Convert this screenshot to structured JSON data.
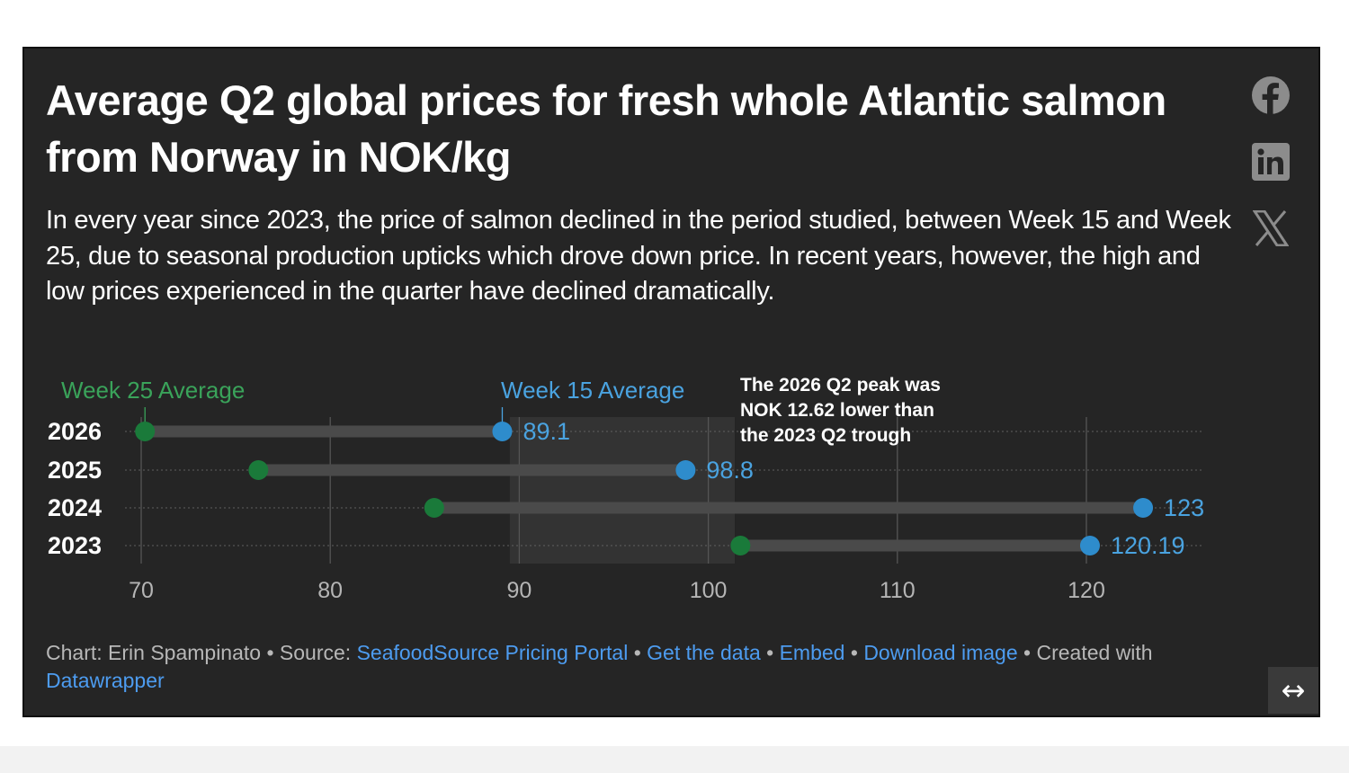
{
  "title": "Average Q2 global prices for fresh whole Atlantic salmon from Norway in NOK/kg",
  "subtitle": "In every year since 2023, the price of salmon declined in the period studied, between Week 15 and Week 25, due to seasonal production upticks which drove down price. In recent years, however, the high and low prices experienced in the quarter have declined dramatically.",
  "social": {
    "facebook": "facebook-icon",
    "linkedin": "linkedin-icon",
    "x": "x-icon"
  },
  "chart_data": {
    "type": "dot-range",
    "categories": [
      "2026",
      "2025",
      "2024",
      "2023"
    ],
    "series": [
      {
        "name": "Week 25 Average",
        "color": "#1a7a3a",
        "values": [
          70.2,
          76.2,
          85.5,
          101.7
        ]
      },
      {
        "name": "Week 15 Average",
        "color": "#2e8ccc",
        "values": [
          89.1,
          98.8,
          123,
          120.19
        ]
      }
    ],
    "value_labels": [
      "89.1",
      "98.8",
      "123",
      "120.19"
    ],
    "xlim": [
      70,
      125
    ],
    "xticks": [
      "70",
      "80",
      "90",
      "100",
      "110",
      "120"
    ],
    "grid": true,
    "highlight_range": [
      89.5,
      101.4
    ],
    "annotation": [
      "The 2026 Q2 peak was",
      "NOK 12.62 lower than",
      "the 2023 Q2 trough"
    ],
    "colors": {
      "range_bar": "#4a4a4a",
      "label_text": "#ffffff",
      "tick_text": "#b5b5b5",
      "grid": "#555555",
      "highlight": "#333333"
    }
  },
  "footer": {
    "chart_credit": "Chart: Erin Spampinato",
    "source_label": "Source:",
    "source_link": "SeafoodSource Pricing Portal",
    "get_data": "Get the data",
    "embed": "Embed",
    "download": "Download image",
    "created_with": "Created with",
    "datawrapper": "Datawrapper",
    "separator": "•"
  },
  "resize_icon": "↔"
}
